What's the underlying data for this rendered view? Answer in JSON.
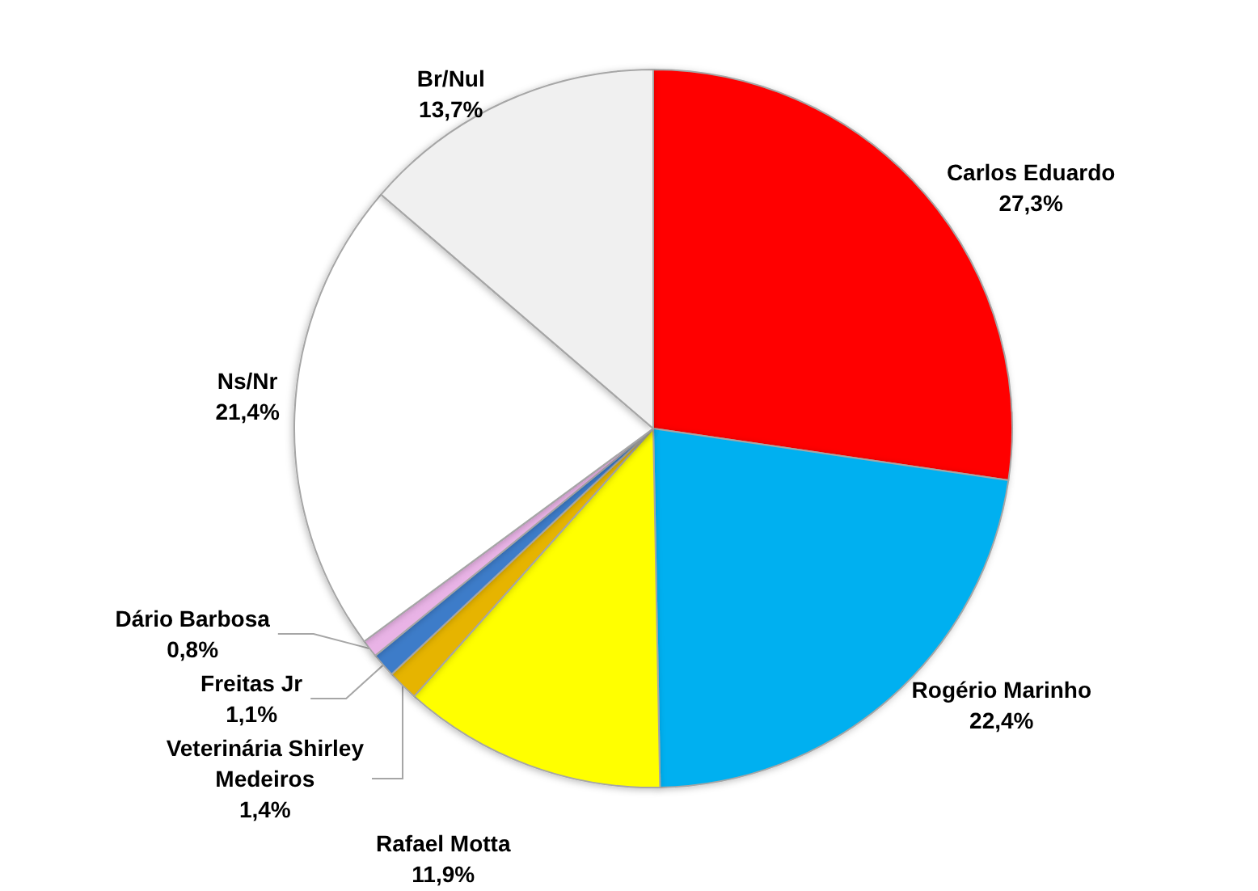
{
  "chart_data": {
    "type": "pie",
    "categories": [
      "Carlos Eduardo",
      "Rogério Marinho",
      "Rafael Motta",
      "Veterinária Shirley Medeiros",
      "Freitas Jr",
      "Dário Barbosa",
      "Ns/Nr",
      "Br/Nul"
    ],
    "values": [
      27.3,
      22.4,
      11.9,
      1.4,
      1.1,
      0.8,
      21.4,
      13.7
    ],
    "colors": [
      "#ff0000",
      "#00b0f0",
      "#ffff00",
      "#e6b400",
      "#3d7cc9",
      "#e9b3e6",
      "#ffffff",
      "#f0f0f0"
    ],
    "value_labels": [
      "27,3%",
      "22,4%",
      "11,9%",
      "1,4%",
      "1,1%",
      "0,8%",
      "21,4%",
      "13,7%"
    ]
  }
}
